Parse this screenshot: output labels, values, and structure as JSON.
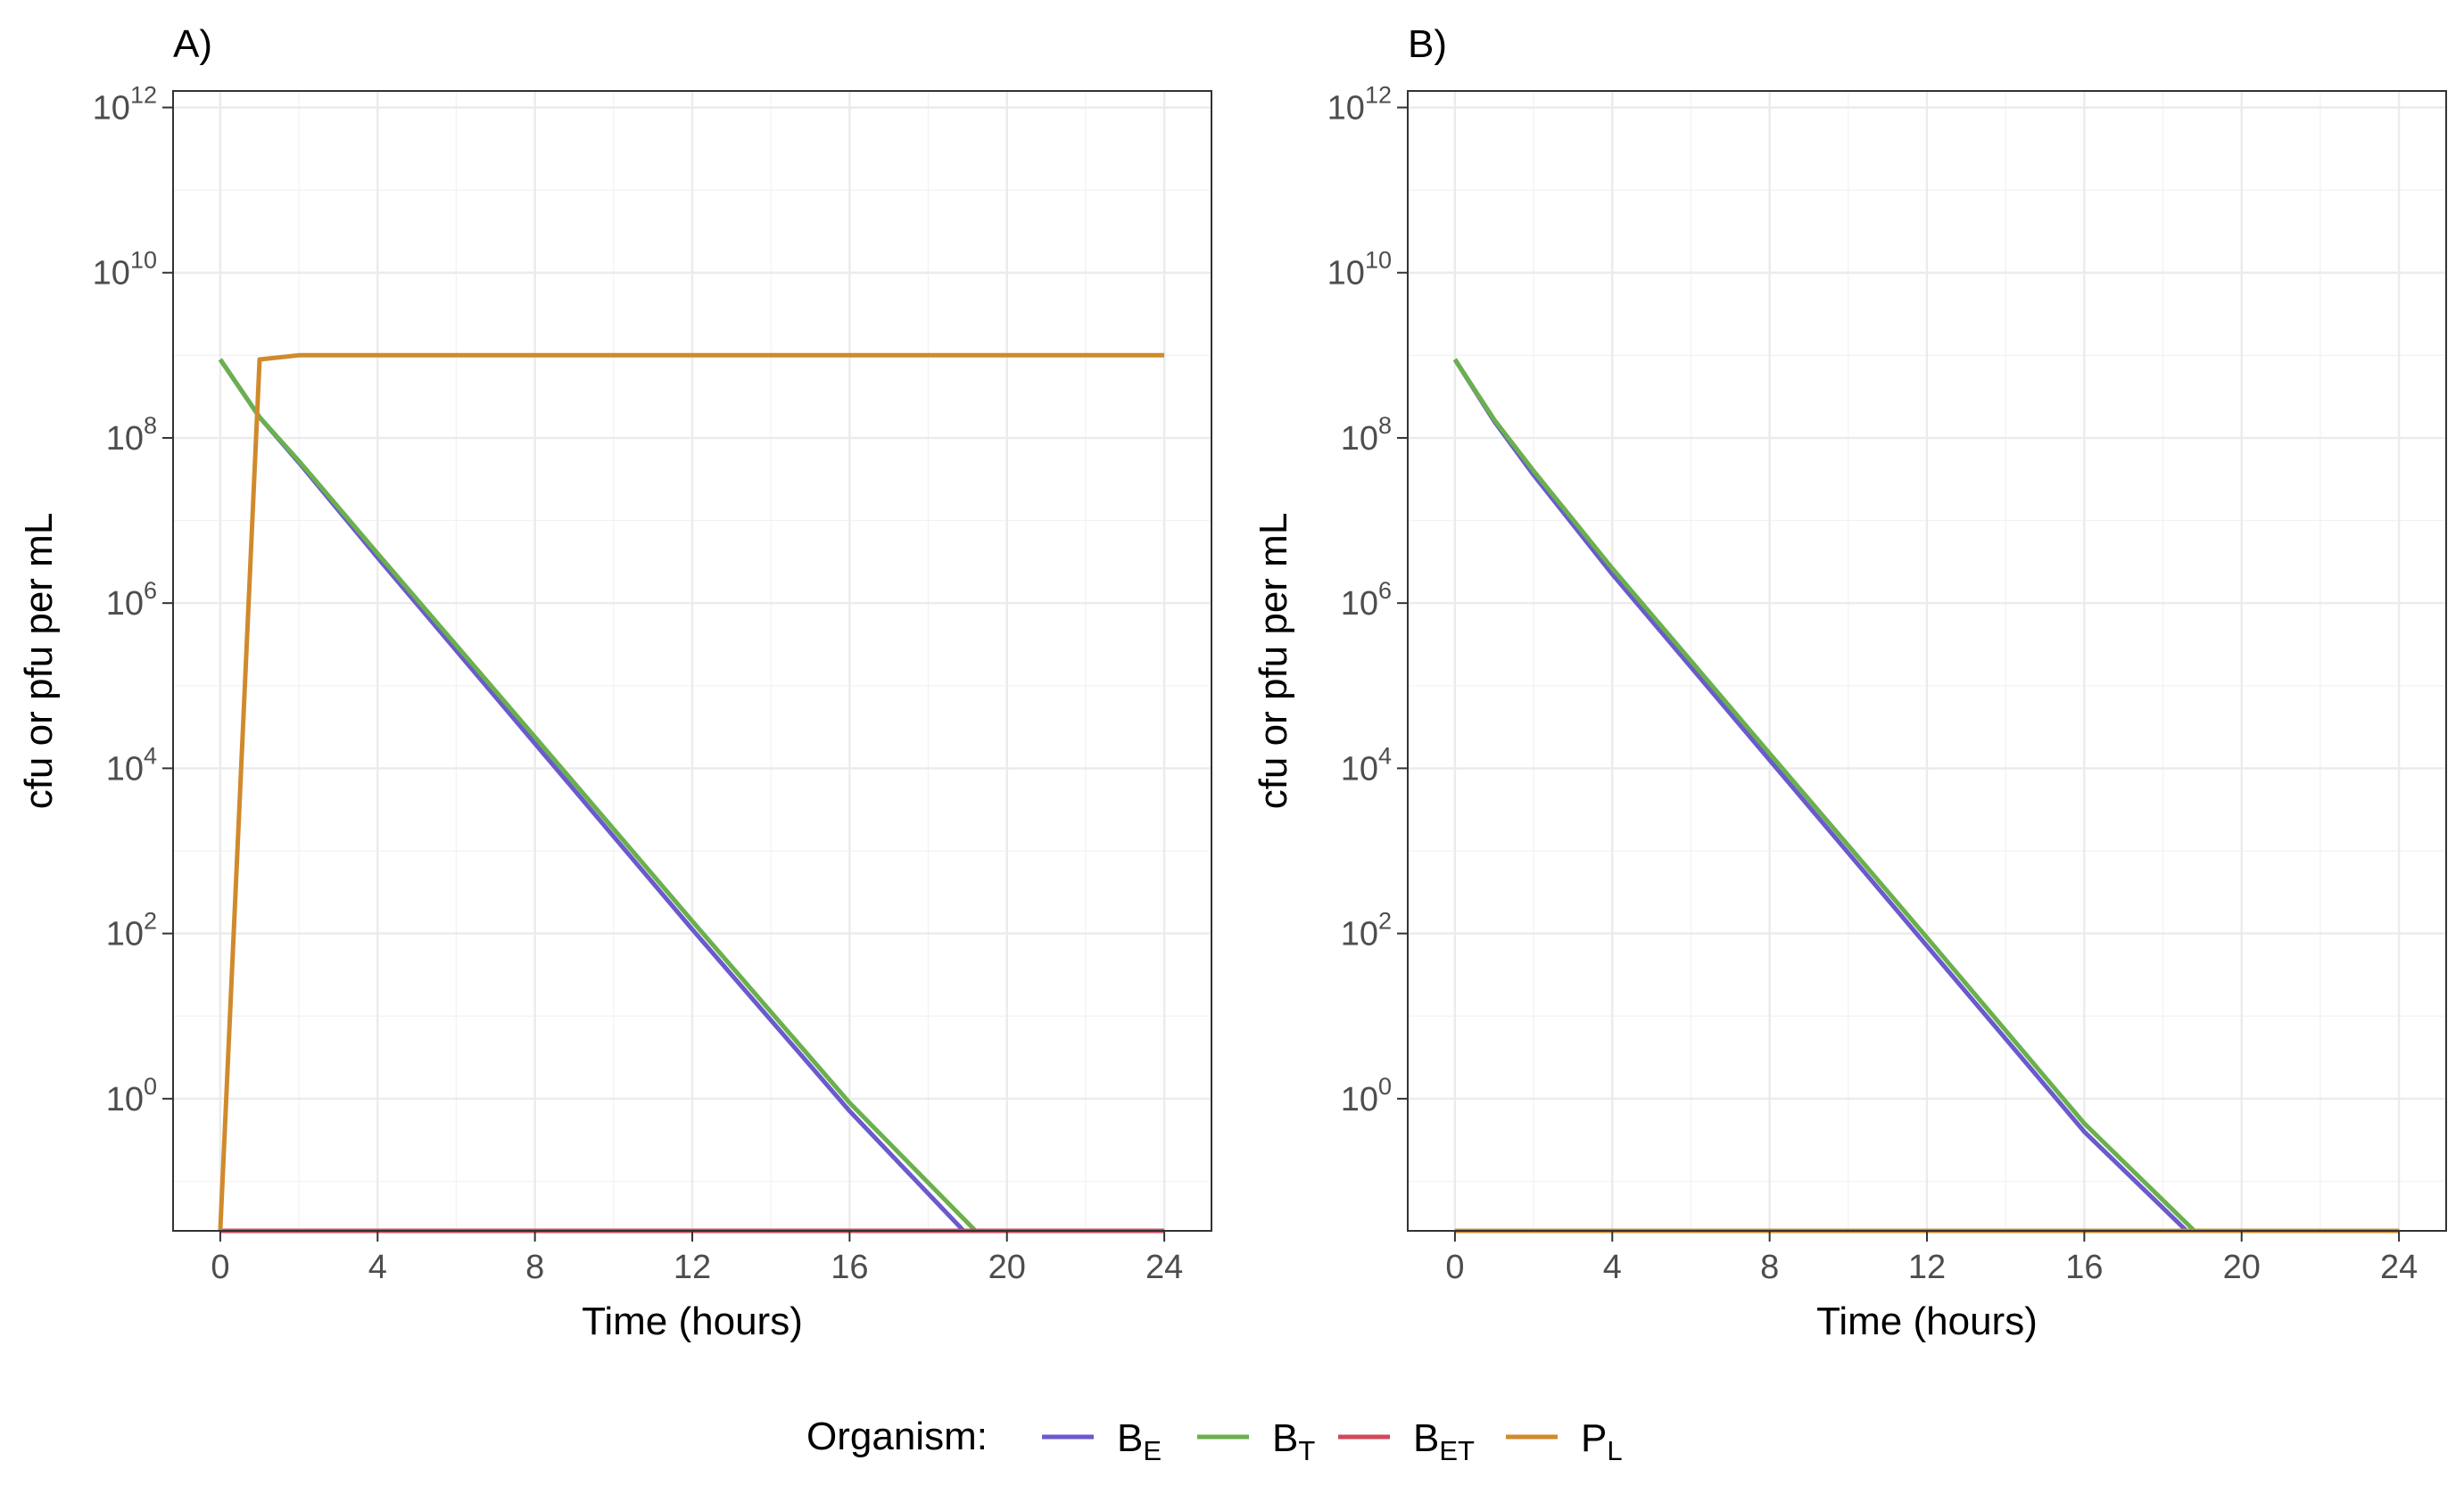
{
  "chart_data": [
    {
      "type": "line",
      "panel_label": "A)",
      "xlabel": "Time (hours)",
      "ylabel": "cfu or pfu per mL",
      "xlim": [
        -1.2,
        25.2
      ],
      "x_ticks": [
        0,
        4,
        8,
        12,
        16,
        20,
        24
      ],
      "x_tick_labels": [
        "0",
        "4",
        "8",
        "12",
        "16",
        "20",
        "24"
      ],
      "y_scale": "log10",
      "ylim_log10": [
        -1.6,
        12.2
      ],
      "y_ticks_log10": [
        0,
        2,
        4,
        6,
        8,
        10,
        12
      ],
      "y_tick_labels": [
        {
          "base": "10",
          "exp": "0"
        },
        {
          "base": "10",
          "exp": "2"
        },
        {
          "base": "10",
          "exp": "4"
        },
        {
          "base": "10",
          "exp": "6"
        },
        {
          "base": "10",
          "exp": "8"
        },
        {
          "base": "10",
          "exp": "10"
        },
        {
          "base": "10",
          "exp": "12"
        }
      ],
      "grid": true,
      "series": [
        {
          "key": "BE",
          "x": [
            0,
            1,
            2,
            4,
            8,
            12,
            16,
            18.9
          ],
          "y_log10": [
            8.95,
            8.25,
            7.7,
            6.55,
            4.3,
            2.05,
            -0.15,
            -1.6
          ]
        },
        {
          "key": "BT",
          "x": [
            0,
            1,
            2,
            4,
            8,
            12,
            16,
            19.2
          ],
          "y_log10": [
            8.95,
            8.25,
            7.72,
            6.6,
            4.38,
            2.15,
            -0.05,
            -1.6
          ]
        },
        {
          "key": "BET",
          "x": [
            0,
            24
          ],
          "y_log10": [
            -1.6,
            -1.6
          ]
        },
        {
          "key": "PL",
          "x": [
            0,
            1,
            2,
            4,
            8,
            24
          ],
          "y_log10": [
            -1.6,
            8.95,
            9.0,
            9.0,
            9.0,
            9.0
          ]
        }
      ]
    },
    {
      "type": "line",
      "panel_label": "B)",
      "xlabel": "Time (hours)",
      "ylabel": "cfu or pfu per mL",
      "xlim": [
        -1.2,
        25.2
      ],
      "x_ticks": [
        0,
        4,
        8,
        12,
        16,
        20,
        24
      ],
      "x_tick_labels": [
        "0",
        "4",
        "8",
        "12",
        "16",
        "20",
        "24"
      ],
      "y_scale": "log10",
      "ylim_log10": [
        -1.6,
        12.2
      ],
      "y_ticks_log10": [
        0,
        2,
        4,
        6,
        8,
        10,
        12
      ],
      "y_tick_labels": [
        {
          "base": "10",
          "exp": "0"
        },
        {
          "base": "10",
          "exp": "2"
        },
        {
          "base": "10",
          "exp": "4"
        },
        {
          "base": "10",
          "exp": "6"
        },
        {
          "base": "10",
          "exp": "8"
        },
        {
          "base": "10",
          "exp": "10"
        },
        {
          "base": "10",
          "exp": "12"
        }
      ],
      "grid": true,
      "series": [
        {
          "key": "BE",
          "x": [
            0,
            1,
            2,
            4,
            8,
            12,
            16,
            18.6
          ],
          "y_log10": [
            8.95,
            8.2,
            7.55,
            6.35,
            4.1,
            1.85,
            -0.4,
            -1.6
          ]
        },
        {
          "key": "BT",
          "x": [
            0,
            1,
            2,
            4,
            8,
            12,
            16,
            18.8
          ],
          "y_log10": [
            8.95,
            8.22,
            7.6,
            6.42,
            4.18,
            1.95,
            -0.3,
            -1.6
          ]
        },
        {
          "key": "BET",
          "x": [
            0,
            24
          ],
          "y_log10": [
            -1.6,
            -1.6
          ]
        },
        {
          "key": "PL",
          "x": [
            0,
            24
          ],
          "y_log10": [
            -1.6,
            -1.6
          ]
        }
      ]
    }
  ],
  "legend": {
    "title": "Organism:",
    "position": "bottom",
    "items": [
      {
        "key": "BE",
        "base": "B",
        "sub": "E",
        "color": "#6a5acd"
      },
      {
        "key": "BT",
        "base": "B",
        "sub": "T",
        "color": "#6ab04c"
      },
      {
        "key": "BET",
        "base": "B",
        "sub": "ET",
        "color": "#d1495b"
      },
      {
        "key": "PL",
        "base": "P",
        "sub": "L",
        "color": "#d08a2c"
      }
    ]
  }
}
